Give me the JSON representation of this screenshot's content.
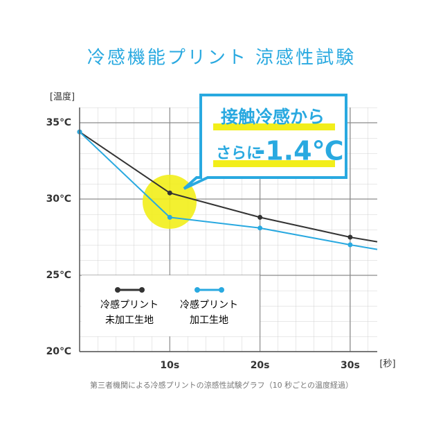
{
  "chart_data": {
    "type": "line",
    "title": "冷感機能プリント 涼感性試験",
    "y_label": "[温度]",
    "x_label": "[秒]",
    "x": [
      0,
      10,
      20,
      30,
      33
    ],
    "series": [
      {
        "name": "冷感プリント未加工生地",
        "color": "#333333",
        "values": [
          34.4,
          30.4,
          28.8,
          27.5,
          27.2
        ]
      },
      {
        "name": "冷感プリント加工生地",
        "color": "#29a9e0",
        "values": [
          34.4,
          28.8,
          28.1,
          27.0,
          26.7
        ]
      }
    ],
    "xlim": [
      0,
      33
    ],
    "ylim": [
      20,
      36
    ],
    "xticks": [
      {
        "value": 10,
        "label": "10s"
      },
      {
        "value": 20,
        "label": "20s"
      },
      {
        "value": 30,
        "label": "30s"
      }
    ],
    "yticks": [
      {
        "value": 20,
        "label": "20℃"
      },
      {
        "value": 25,
        "label": "25℃"
      },
      {
        "value": 30,
        "label": "30℃"
      },
      {
        "value": 35,
        "label": "35℃"
      }
    ],
    "grid": true,
    "annotations": [
      "接触冷感から",
      "さらに",
      "-1.4℃"
    ],
    "footnote": "第三者機関による冷感プリントの涼感性試験グラフ（10 秒ごとの温度経過）"
  }
}
